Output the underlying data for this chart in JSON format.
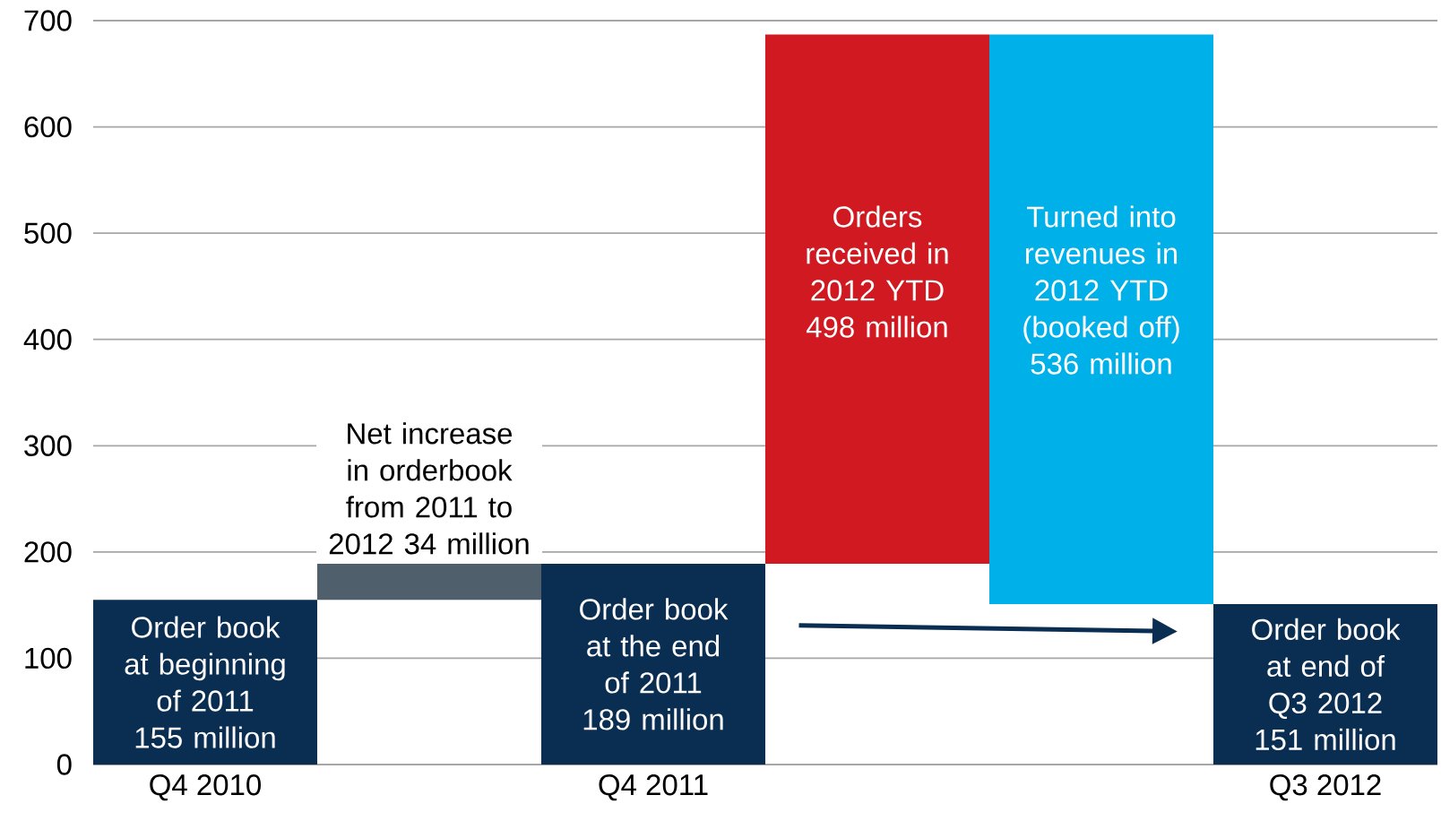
{
  "chart_data": {
    "type": "bar",
    "categories": [
      "Q4 2010",
      null,
      "Q4 2011",
      null,
      null,
      "Q3 2012"
    ],
    "values": [
      155,
      34,
      189,
      498,
      536,
      151
    ],
    "base": [
      0,
      155,
      0,
      189,
      151,
      0
    ],
    "colors": [
      "#0a2d52",
      "#4f5f6b",
      "#0a2d52",
      "#d01920",
      "#00b0e8",
      "#0a2d52"
    ],
    "value_labels": [
      "Order book at beginning of 2011 155 million",
      "Net increase in orderbook from 2011 to 2012 34 million",
      "Order book at the end of 2011 189 million",
      "Orders received in 2012 YTD 498 million",
      "Turned into revenues in 2012 YTD (booked off) 536 million",
      "Order book at end of Q3 2012 151 million"
    ],
    "ylim": [
      0,
      700
    ],
    "yticks": [
      0,
      100,
      200,
      300,
      400,
      500,
      600,
      700
    ],
    "grid": "y"
  }
}
